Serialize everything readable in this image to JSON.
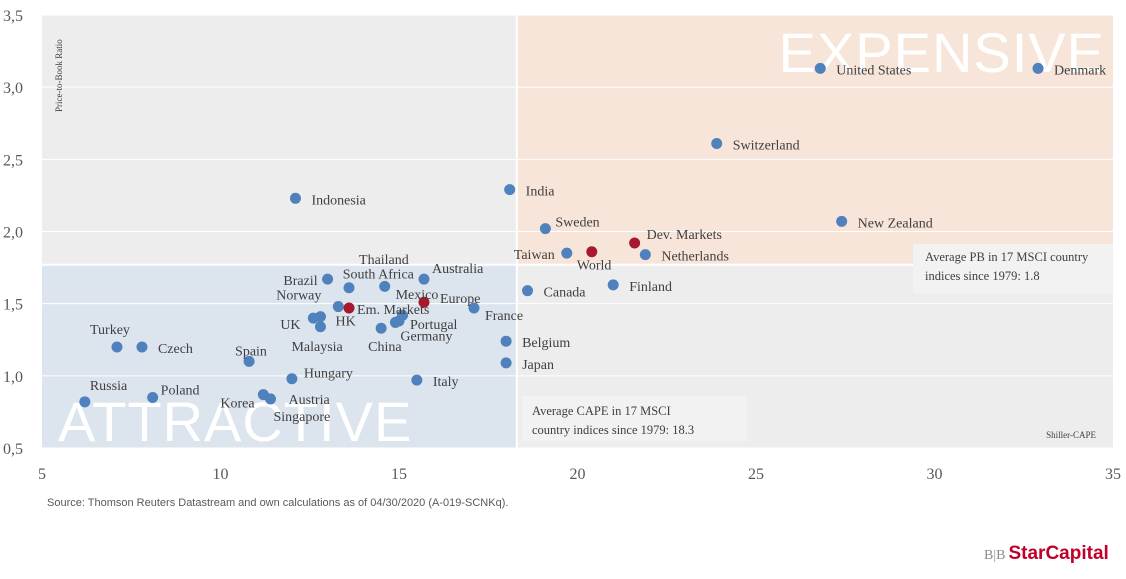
{
  "chart_data": {
    "type": "scatter",
    "xlabel": "Shiller-CAPE",
    "ylabel": "Price-to-Book Ratio",
    "xlim": [
      5,
      35
    ],
    "ylim": [
      0.5,
      3.5
    ],
    "x_ticks": [
      5,
      10,
      15,
      20,
      25,
      30,
      35
    ],
    "x_tick_labels": [
      "5",
      "10",
      "15",
      "20",
      "25",
      "30",
      "35"
    ],
    "y_ticks": [
      0.5,
      1.0,
      1.5,
      2.0,
      2.5,
      3.0,
      3.5
    ],
    "y_tick_labels": [
      "0,5",
      "1,0",
      "1,5",
      "2,0",
      "2,5",
      "3,0",
      "3,5"
    ],
    "avg_cape": 18.3,
    "avg_pb": 1.77,
    "quadrant_labels": {
      "expensive": "EXPENSIVE",
      "attractive": "ATTRACTIVE"
    },
    "annotation_cape": [
      "Average CAPE in 17 MSCI",
      "country indices since 1979: 18.3"
    ],
    "annotation_pb": [
      "Average PB in 17 MSCI country",
      "indices since 1979: 1.8"
    ],
    "colors": {
      "country": "#4f81bd",
      "aggregate": "#a6192e",
      "expensive_bg": "#f8e5d9",
      "attractive_bg": "#dce4ee",
      "neutral_bg": "#ededed"
    },
    "points": [
      {
        "name": "Denmark",
        "x": 32.9,
        "y": 3.13,
        "group": "country"
      },
      {
        "name": "United States",
        "x": 26.8,
        "y": 3.13,
        "group": "country"
      },
      {
        "name": "Switzerland",
        "x": 23.9,
        "y": 2.61,
        "group": "country"
      },
      {
        "name": "New Zealand",
        "x": 27.4,
        "y": 2.07,
        "group": "country"
      },
      {
        "name": "India",
        "x": 18.1,
        "y": 2.29,
        "group": "country"
      },
      {
        "name": "Indonesia",
        "x": 12.1,
        "y": 2.23,
        "group": "country"
      },
      {
        "name": "Sweden",
        "x": 19.1,
        "y": 2.02,
        "group": "country"
      },
      {
        "name": "Taiwan",
        "x": 19.7,
        "y": 1.85,
        "group": "country"
      },
      {
        "name": "World",
        "x": 20.4,
        "y": 1.86,
        "group": "aggregate"
      },
      {
        "name": "Dev. Markets",
        "x": 21.6,
        "y": 1.92,
        "group": "aggregate"
      },
      {
        "name": "Netherlands",
        "x": 21.9,
        "y": 1.84,
        "group": "country"
      },
      {
        "name": "Finland",
        "x": 21.0,
        "y": 1.63,
        "group": "country"
      },
      {
        "name": "Canada",
        "x": 18.6,
        "y": 1.59,
        "group": "country"
      },
      {
        "name": "Thailand",
        "x": 13.6,
        "y": 1.61,
        "group": "country"
      },
      {
        "name": "Brazil",
        "x": 13.0,
        "y": 1.67,
        "group": "country"
      },
      {
        "name": "South Africa",
        "x": 14.6,
        "y": 1.62,
        "group": "country"
      },
      {
        "name": "Australia",
        "x": 15.7,
        "y": 1.67,
        "group": "country"
      },
      {
        "name": "Mexico",
        "x": 15.1,
        "y": 1.42,
        "group": "country"
      },
      {
        "name": "Norway",
        "x": 13.3,
        "y": 1.48,
        "group": "country"
      },
      {
        "name": "Em. Markets",
        "x": 13.6,
        "y": 1.47,
        "group": "aggregate"
      },
      {
        "name": "Europe",
        "x": 15.7,
        "y": 1.51,
        "group": "aggregate"
      },
      {
        "name": "France",
        "x": 17.1,
        "y": 1.47,
        "group": "country"
      },
      {
        "name": "UK",
        "x": 12.6,
        "y": 1.4,
        "group": "country"
      },
      {
        "name": "HK",
        "x": 12.8,
        "y": 1.41,
        "group": "country"
      },
      {
        "name": "Portugal",
        "x": 15.0,
        "y": 1.38,
        "group": "country"
      },
      {
        "name": "Malaysia",
        "x": 12.8,
        "y": 1.34,
        "group": "country"
      },
      {
        "name": "Germany",
        "x": 14.9,
        "y": 1.37,
        "group": "country"
      },
      {
        "name": "China",
        "x": 14.5,
        "y": 1.33,
        "group": "country"
      },
      {
        "name": "Belgium",
        "x": 18.0,
        "y": 1.24,
        "group": "country"
      },
      {
        "name": "Japan",
        "x": 18.0,
        "y": 1.09,
        "group": "country"
      },
      {
        "name": "Turkey",
        "x": 7.1,
        "y": 1.2,
        "group": "country"
      },
      {
        "name": "Czech",
        "x": 7.8,
        "y": 1.2,
        "group": "country"
      },
      {
        "name": "Spain",
        "x": 10.8,
        "y": 1.1,
        "group": "country"
      },
      {
        "name": "Hungary",
        "x": 12.0,
        "y": 0.98,
        "group": "country"
      },
      {
        "name": "Italy",
        "x": 15.5,
        "y": 0.97,
        "group": "country"
      },
      {
        "name": "Russia",
        "x": 6.2,
        "y": 0.82,
        "group": "country"
      },
      {
        "name": "Poland",
        "x": 8.1,
        "y": 0.85,
        "group": "country"
      },
      {
        "name": "Korea",
        "x": 11.2,
        "y": 0.87,
        "group": "country"
      },
      {
        "name": "Austria",
        "x": 11.4,
        "y": 0.84,
        "group": "country"
      },
      {
        "name": "Singapore",
        "x": 11.4,
        "y": 0.84,
        "group": "country"
      }
    ]
  },
  "footer": {
    "source": "Source: Thomson Reuters Datastream and own calculations as of 04/30/2020 (A-019-SCNKq).",
    "logo_prefix": "B|B",
    "logo_name": "StarCapital"
  }
}
